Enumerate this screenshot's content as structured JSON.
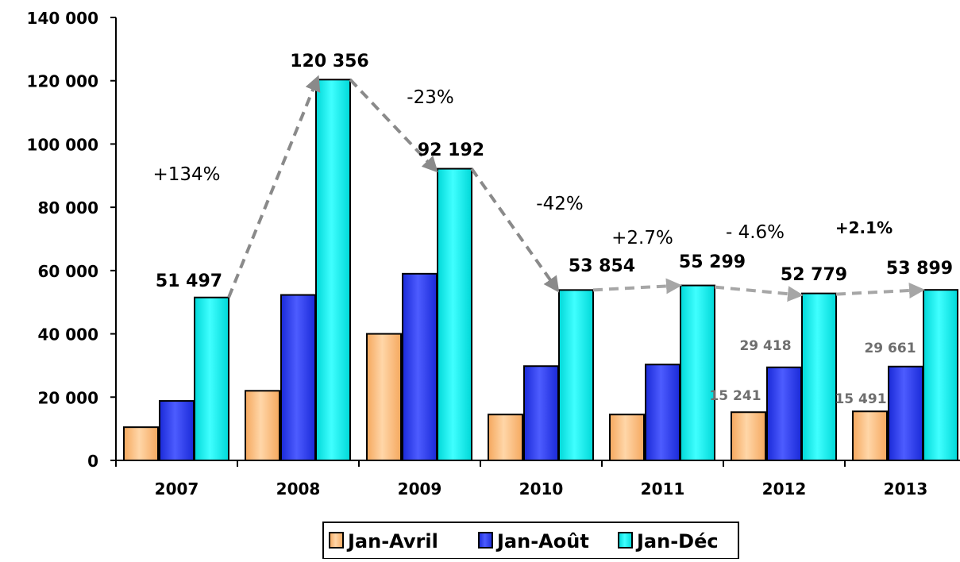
{
  "chart_data": {
    "type": "bar",
    "categories": [
      "2007",
      "2008",
      "2009",
      "2010",
      "2011",
      "2012",
      "2013"
    ],
    "series": [
      {
        "name": "Jan-Avril",
        "values": [
          10500,
          22000,
          40000,
          14500,
          14500,
          15241,
          15491
        ]
      },
      {
        "name": "Jan-Août",
        "values": [
          18800,
          52300,
          59000,
          29800,
          30300,
          29418,
          29661
        ]
      },
      {
        "name": "Jan-Déc",
        "values": [
          51497,
          120356,
          92192,
          53854,
          55299,
          52779,
          53899
        ]
      }
    ],
    "ylim": [
      0,
      140000
    ],
    "yticks": [
      0,
      20000,
      40000,
      60000,
      80000,
      100000,
      120000,
      140000
    ],
    "ytick_labels": [
      "0",
      "20 000",
      "40 000",
      "60 000",
      "80 000",
      "100 000",
      "120 000",
      "140 000"
    ],
    "data_labels": {
      "Jan-Déc": [
        "51 497",
        "120 356",
        "92 192",
        "53 854",
        "55 299",
        "52 779",
        "53 899"
      ],
      "Jan-Avril": [
        null,
        null,
        null,
        null,
        null,
        "15 241",
        "15 491"
      ],
      "Jan-Août": [
        null,
        null,
        null,
        null,
        null,
        "29 418",
        "29 661"
      ]
    },
    "annotations": [
      {
        "text": "+134%",
        "between": [
          "2007",
          "2008"
        ]
      },
      {
        "text": "-23%",
        "between": [
          "2008",
          "2009"
        ]
      },
      {
        "text": "-42%",
        "between": [
          "2009",
          "2010"
        ]
      },
      {
        "text": "+2.7%",
        "between": [
          "2010",
          "2011"
        ]
      },
      {
        "text": "- 4.6%",
        "between": [
          "2011",
          "2012"
        ]
      },
      {
        "text": "+2.1%",
        "between": [
          "2012",
          "2013"
        ]
      }
    ],
    "legend_position": "bottom",
    "grid": false,
    "colors": {
      "Jan-Avril": "#fcc183",
      "Jan-Août": "#2e40f0",
      "Jan-Déc": "#14f0ef",
      "arrow": "#a6a6a6"
    }
  }
}
